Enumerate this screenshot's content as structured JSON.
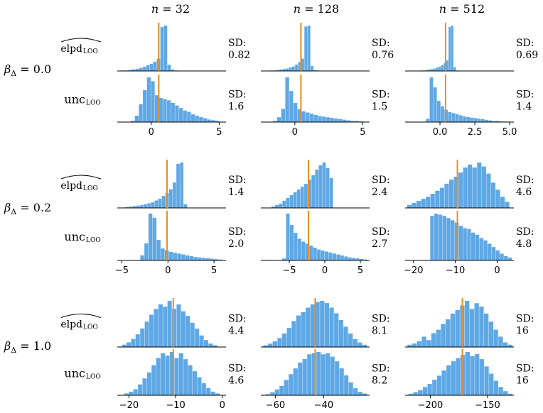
{
  "colors": {
    "bar": "#5fa8e6",
    "line": "#f08a1c",
    "axis": "#000000"
  },
  "chart_data": {
    "type": "histogram-grid",
    "column_titles": [
      "n = 32",
      "n = 128",
      "n = 512"
    ],
    "row_group_labels": [
      "β_Δ = 0.0",
      "β_Δ = 0.2",
      "β_Δ = 1.0"
    ],
    "row_labels": [
      "elpd_LOO (hat)",
      "unc_LOO"
    ],
    "sd_label": "SD:",
    "groups": [
      {
        "label": "β_Δ = 0.0",
        "xlim": [
          [
            -2.5,
            5.5
          ],
          [
            -2.5,
            5.5
          ],
          [
            -2.5,
            5.3
          ]
        ],
        "ticks": [
          [
            "0",
            "5"
          ],
          [
            "0",
            "5"
          ],
          [
            "0.0",
            "2.5",
            "5.0"
          ]
        ],
        "tick_values": [
          [
            0,
            5
          ],
          [
            0,
            5
          ],
          [
            0,
            2.5,
            5
          ]
        ],
        "panels": [
          [
            {
              "lo": -2.2,
              "hi": 2.5,
              "vline": 0.55,
              "sd": "0.82",
              "counts": [
                1,
                1,
                2,
                3,
                4,
                6,
                8,
                11,
                14,
                18,
                24,
                85,
                88,
                12,
                3,
                1,
                0,
                0
              ]
            },
            {
              "lo": -1.8,
              "hi": 2.3,
              "vline": 0.45,
              "sd": "0.76",
              "counts": [
                1,
                1,
                2,
                3,
                4,
                5,
                7,
                9,
                13,
                18,
                25,
                90,
                92,
                10,
                2,
                1,
                0,
                0
              ]
            },
            {
              "lo": -1.4,
              "hi": 1.9,
              "vline": 0.4,
              "sd": "0.69",
              "counts": [
                1,
                1,
                2,
                3,
                4,
                5,
                7,
                9,
                12,
                16,
                22,
                92,
                95,
                8,
                1,
                0,
                0,
                0
              ]
            }
          ],
          [
            {
              "lo": -1.5,
              "hi": 5.0,
              "vline": 0.55,
              "sd": "1.6",
              "counts": [
                2,
                10,
                28,
                50,
                70,
                64,
                42,
                38,
                36,
                34,
                30,
                26,
                22,
                18,
                16,
                12,
                10,
                8,
                6,
                4,
                3,
                2
              ]
            },
            {
              "lo": -1.6,
              "hi": 5.0,
              "vline": 0.45,
              "sd": "1.5",
              "counts": [
                2,
                8,
                22,
                75,
                52,
                32,
                22,
                18,
                16,
                14,
                12,
                10,
                9,
                8,
                7,
                6,
                5,
                4,
                3,
                2,
                2,
                1
              ]
            },
            {
              "lo": -1.0,
              "hi": 4.8,
              "vline": 0.4,
              "sd": "1.4",
              "counts": [
                6,
                80,
                62,
                38,
                28,
                22,
                18,
                16,
                14,
                12,
                10,
                9,
                8,
                7,
                6,
                5,
                4,
                3,
                2,
                2,
                1,
                1
              ]
            }
          ]
        ]
      },
      {
        "label": "β_Δ = 0.2",
        "xlim": [
          [
            -5.5,
            6.3
          ],
          [
            -9.0,
            6.3
          ],
          [
            -22.0,
            4.0
          ]
        ],
        "ticks": [
          [
            "-5",
            "0",
            "5"
          ],
          [
            "-5",
            "0",
            "5"
          ],
          [
            "-20",
            "-10",
            "0"
          ]
        ],
        "tick_values": [
          [
            -5,
            0,
            5
          ],
          [
            -5,
            0,
            5
          ],
          [
            -20,
            -10,
            0
          ]
        ],
        "panels": [
          [
            {
              "lo": -5.0,
              "hi": 2.1,
              "vline": -0.1,
              "sd": "1.4",
              "counts": [
                1,
                2,
                3,
                4,
                5,
                6,
                8,
                10,
                12,
                16,
                20,
                26,
                32,
                40,
                55,
                95,
                98,
                8
              ]
            },
            {
              "lo": -7.5,
              "hi": 1.2,
              "vline": -2.3,
              "sd": "2.4",
              "counts": [
                2,
                4,
                6,
                10,
                14,
                18,
                22,
                26,
                30,
                34,
                40,
                46,
                54,
                60,
                64,
                56,
                42
              ]
            },
            {
              "lo": -21.5,
              "hi": 3.0,
              "vline": -9.5,
              "sd": "4.6",
              "counts": [
                6,
                10,
                14,
                18,
                22,
                28,
                34,
                40,
                48,
                56,
                62,
                70,
                80,
                86,
                80,
                90,
                82,
                68,
                50,
                36,
                22,
                12
              ]
            }
          ],
          [
            {
              "lo": -3.0,
              "hi": 5.9,
              "vline": -0.1,
              "sd": "2.0",
              "counts": [
                12,
                40,
                110,
                100,
                48,
                28,
                24,
                20,
                18,
                16,
                14,
                12,
                10,
                8,
                7,
                6,
                5,
                4,
                3,
                2
              ]
            },
            {
              "lo": -6.0,
              "hi": 6.0,
              "vline": -2.3,
              "sd": "2.7",
              "counts": [
                4,
                95,
                72,
                56,
                44,
                38,
                34,
                30,
                26,
                22,
                20,
                18,
                16,
                14,
                12,
                10,
                8,
                6,
                5,
                4,
                3,
                2
              ]
            },
            {
              "lo": -16.0,
              "hi": 3.6,
              "vline": -9.5,
              "sd": "4.8",
              "counts": [
                80,
                84,
                82,
                80,
                76,
                72,
                68,
                62,
                58,
                56,
                50,
                46,
                40,
                36,
                30,
                24,
                18,
                12,
                8,
                5
              ]
            }
          ]
        ]
      },
      {
        "label": "β_Δ = 1.0",
        "xlim": [
          [
            -22.5,
            0.8
          ],
          [
            -66.0,
            -21.0
          ],
          [
            -222.0,
            -127.0
          ]
        ],
        "ticks": [
          [
            "-20",
            "-10",
            "0"
          ],
          [
            "-60",
            "-40"
          ],
          [
            "-200",
            "-150"
          ]
        ],
        "tick_values": [
          [
            -20,
            -10,
            0
          ],
          [
            -60,
            -40
          ],
          [
            -200,
            -150
          ]
        ],
        "panels": [
          [
            {
              "lo": -21.5,
              "hi": -1.0,
              "vline": -10.5,
              "sd": "4.4",
              "counts": [
                4,
                8,
                14,
                22,
                32,
                44,
                56,
                66,
                74,
                70,
                80,
                66,
                74,
                62,
                54,
                42,
                32,
                20,
                12,
                6,
                3
              ]
            },
            {
              "lo": -65.0,
              "hi": -22.0,
              "vline": -43.5,
              "sd": "8.1",
              "counts": [
                3,
                6,
                10,
                16,
                24,
                34,
                46,
                56,
                62,
                70,
                76,
                80,
                82,
                78,
                70,
                60,
                48,
                36,
                24,
                14,
                8,
                4
              ]
            },
            {
              "lo": -220.0,
              "hi": -128.0,
              "vline": -172.0,
              "sd": "16",
              "counts": [
                4,
                6,
                10,
                18,
                12,
                24,
                30,
                40,
                48,
                58,
                64,
                72,
                80,
                66,
                76,
                70,
                58,
                44,
                30,
                18,
                8,
                4
              ]
            }
          ],
          [
            {
              "lo": -21.0,
              "hi": -0.5,
              "vline": -10.5,
              "sd": "4.6",
              "counts": [
                3,
                6,
                10,
                18,
                28,
                38,
                50,
                62,
                70,
                66,
                72,
                62,
                70,
                60,
                50,
                40,
                30,
                20,
                12,
                6,
                3
              ]
            },
            {
              "lo": -64.0,
              "hi": -22.0,
              "vline": -43.5,
              "sd": "8.2",
              "counts": [
                2,
                5,
                10,
                16,
                26,
                36,
                46,
                56,
                62,
                70,
                72,
                74,
                70,
                72,
                66,
                58,
                46,
                34,
                22,
                12,
                6,
                3
              ]
            },
            {
              "lo": -219.0,
              "hi": -128.0,
              "vline": -172.0,
              "sd": "16",
              "counts": [
                3,
                6,
                10,
                16,
                22,
                30,
                38,
                48,
                58,
                66,
                72,
                78,
                84,
                76,
                80,
                70,
                56,
                42,
                28,
                16,
                8,
                3
              ]
            }
          ]
        ]
      }
    ]
  }
}
